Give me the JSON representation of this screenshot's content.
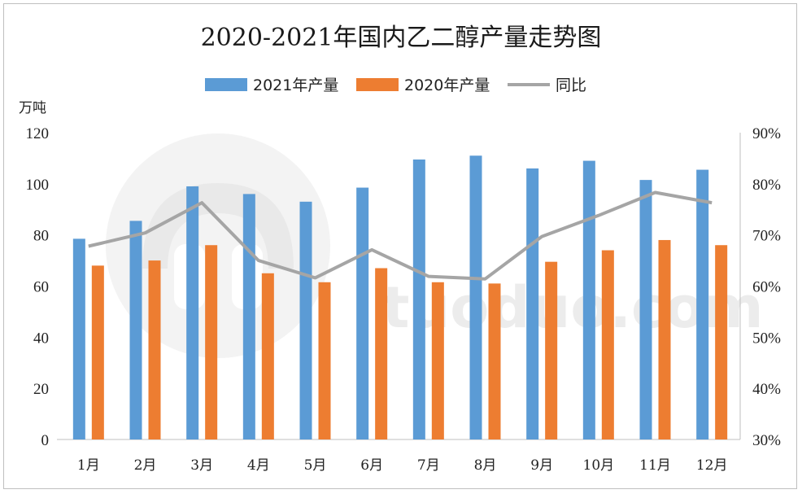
{
  "chart_data": {
    "type": "bar",
    "title": "2020-2021年国内乙二醇产量走势图",
    "y_left_unit": "万吨",
    "categories": [
      "1月",
      "2月",
      "3月",
      "4月",
      "5月",
      "6月",
      "7月",
      "8月",
      "9月",
      "10月",
      "11月",
      "12月"
    ],
    "series": [
      {
        "name": "2021年产量",
        "type": "bar",
        "axis": "left",
        "color": "#5b9bd5",
        "values": [
          78.5,
          85.5,
          99,
          96,
          93,
          98.5,
          109.5,
          111,
          106,
          109,
          101.5,
          105.5
        ]
      },
      {
        "name": "2020年产量",
        "type": "bar",
        "axis": "left",
        "color": "#ed7d31",
        "values": [
          68,
          70,
          76,
          65,
          61.5,
          67,
          61.5,
          61,
          69.5,
          74,
          78,
          76
        ]
      },
      {
        "name": "同比",
        "type": "line",
        "axis": "right",
        "color": "#a5a5a5",
        "values": [
          67.8,
          70.4,
          76.3,
          65.0,
          61.6,
          67.1,
          61.9,
          61.4,
          69.7,
          73.8,
          78.3,
          76.3
        ]
      }
    ],
    "y_left": {
      "min": 0,
      "max": 120,
      "ticks": [
        0,
        20,
        40,
        60,
        80,
        100,
        120
      ]
    },
    "y_right": {
      "min": 30,
      "max": 90,
      "ticks": [
        "30%",
        "40%",
        "50%",
        "60%",
        "70%",
        "80%",
        "90%"
      ]
    },
    "grid": false,
    "legend_position": "top"
  },
  "watermark": {
    "text": "tuoduo.com",
    "color": "#ececec"
  }
}
